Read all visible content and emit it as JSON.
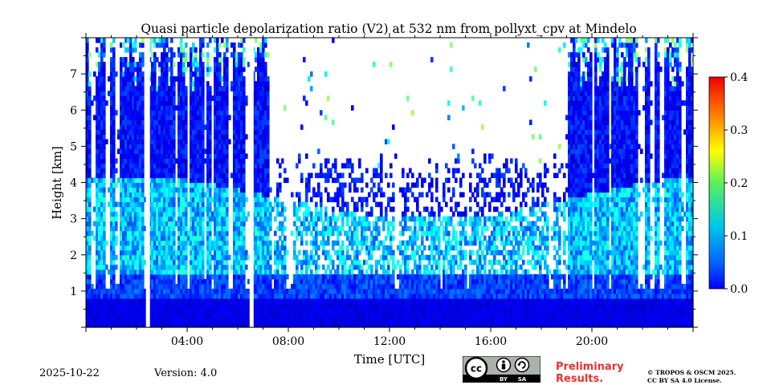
{
  "chart_data": {
    "type": "heatmap",
    "title": "Quasi particle depolarization ratio (V2) at 532 nm from pollyxt_cpv at Mindelo",
    "xlabel": "Time [UTC]",
    "ylabel": "Height [km]",
    "x_range_hours": [
      0,
      24
    ],
    "ylim_km": [
      0,
      8
    ],
    "x_ticks": [
      "04:00",
      "08:00",
      "12:00",
      "16:00",
      "20:00"
    ],
    "x_tick_hours": [
      4,
      8,
      12,
      16,
      20
    ],
    "y_ticks": [
      "1",
      "2",
      "3",
      "4",
      "5",
      "6",
      "7"
    ],
    "y_tick_values": [
      1,
      2,
      3,
      4,
      5,
      6,
      7
    ],
    "colorbar": {
      "colormap": "jet",
      "range": [
        0.0,
        0.4
      ],
      "ticks": [
        "0.0",
        "0.1",
        "0.2",
        "0.3",
        "0.4"
      ],
      "tick_values": [
        0.0,
        0.1,
        0.2,
        0.3,
        0.4
      ]
    },
    "features": {
      "boundary_layer_km": [
        0,
        0.8
      ],
      "boundary_layer_ratio": 0.03,
      "dust_layer_km": [
        1.5,
        4.0
      ],
      "dust_layer_ratio_range": [
        0.08,
        0.17
      ],
      "data_gaps_hours": [
        2.45,
        6.55
      ],
      "daytime_high_noise_hours": [
        7.2,
        19.0
      ]
    }
  },
  "footer": {
    "date": "2025-10-22",
    "version": "Version: 4.0",
    "preliminary_line1": "Preliminary",
    "preliminary_line2": "Results.",
    "copyright_line1": "© TROPOS & OSCM 2025.",
    "copyright_line2": "CC BY SA 4.0 License."
  },
  "license_badge": {
    "label_cc": "cc",
    "label_by": "BY",
    "label_sa": "SA",
    "icons": [
      "cc-logo-icon",
      "person-icon",
      "share-alike-icon"
    ]
  }
}
